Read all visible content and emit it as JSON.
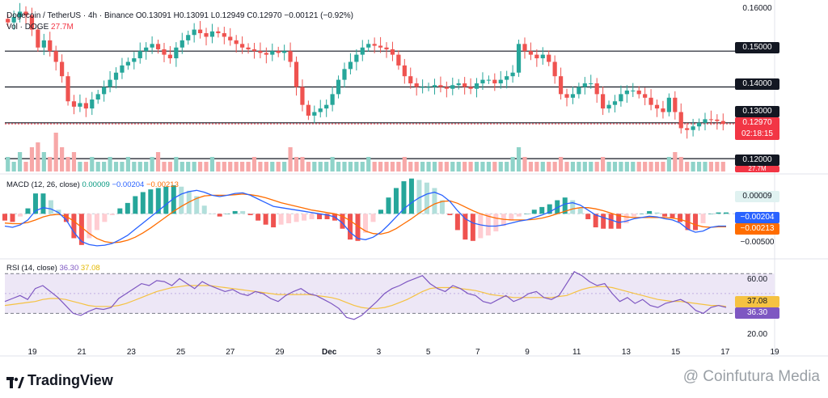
{
  "header": {
    "symbol": "Dogecoin / TetherUS · 4h · Binance",
    "ohlc": "O0.13091 H0.13091 L0.12949 C0.12970 −0.00121 (−0.92%)",
    "vol_label": "Vol · DOGE",
    "vol_value": "27.7M"
  },
  "price_axis": {
    "ticks": [
      "0.16000",
      "0.15000",
      "0.14000",
      "0.13000",
      "0.12000"
    ],
    "tick_values": [
      0.16,
      0.15,
      0.14,
      0.13,
      0.12
    ],
    "current_price": "0.12970",
    "countdown": "02:18:15",
    "vol_tag": "27.7M"
  },
  "macd": {
    "title": "MACD (12, 26, close)",
    "hist_label": "0.00009",
    "macd_label": "−0.00204",
    "signal_label": "−0.00213",
    "axis_ticks": [
      "−0.00500"
    ],
    "tags": {
      "hist": "0.00009",
      "macd": "−0.00204",
      "signal": "−0.00213"
    }
  },
  "rsi": {
    "title": "RSI (14, close)",
    "rsi_label": "36.30",
    "ma_label": "37.08",
    "axis_ticks": [
      "60.00",
      "20.00"
    ],
    "tags": {
      "ma": "37.08",
      "rsi": "36.30"
    }
  },
  "time_axis": [
    "19",
    "21",
    "23",
    "25",
    "27",
    "29",
    "Dec",
    "3",
    "5",
    "7",
    "9",
    "11",
    "13",
    "15",
    "17",
    "19"
  ],
  "branding": {
    "logo": "TradingView",
    "watermark": "@ Coinfutura Media"
  },
  "colors": {
    "up": "#26a69a",
    "down": "#ef5350",
    "macd": "#2962ff",
    "signal": "#ff6d00",
    "rsi": "#7e57c2",
    "rsi_ma": "#f5c242"
  },
  "chart_data": {
    "type": "candlestick",
    "title": "Dogecoin / TetherUS · 4h · Binance",
    "ylim": [
      0.118,
      0.162
    ],
    "horizontal_levels": [
      0.15,
      0.14,
      0.13,
      0.12
    ],
    "candles_close": [
      0.158,
      0.1595,
      0.161,
      0.16,
      0.156,
      0.151,
      0.153,
      0.15,
      0.147,
      0.143,
      0.136,
      0.1345,
      0.1355,
      0.134,
      0.1365,
      0.138,
      0.14,
      0.142,
      0.144,
      0.146,
      0.147,
      0.148,
      0.15,
      0.151,
      0.152,
      0.1505,
      0.149,
      0.148,
      0.151,
      0.153,
      0.1545,
      0.156,
      0.155,
      0.154,
      0.1555,
      0.155,
      0.154,
      0.153,
      0.152,
      0.151,
      0.1505,
      0.15,
      0.1495,
      0.149,
      0.15,
      0.1495,
      0.15,
      0.147,
      0.14,
      0.135,
      0.132,
      0.133,
      0.134,
      0.135,
      0.138,
      0.142,
      0.145,
      0.147,
      0.149,
      0.151,
      0.152,
      0.1515,
      0.151,
      0.1505,
      0.149,
      0.146,
      0.143,
      0.141,
      0.14,
      0.14,
      0.14,
      0.1405,
      0.14,
      0.1395,
      0.1405,
      0.141,
      0.14,
      0.1395,
      0.141,
      0.142,
      0.142,
      0.141,
      0.142,
      0.143,
      0.144,
      0.152,
      0.15,
      0.149,
      0.148,
      0.149,
      0.147,
      0.143,
      0.138,
      0.137,
      0.138,
      0.14,
      0.141,
      0.141,
      0.138,
      0.134,
      0.135,
      0.136,
      0.138,
      0.139,
      0.139,
      0.138,
      0.137,
      0.135,
      0.134,
      0.133,
      0.137,
      0.133,
      0.1285,
      0.128,
      0.129,
      0.13,
      0.131,
      0.1309,
      0.1305,
      0.1297
    ],
    "volume": [
      3,
      2,
      4,
      2,
      5,
      6,
      4,
      3,
      8,
      5,
      3,
      4,
      2,
      2,
      3,
      2,
      2,
      3,
      2,
      2,
      3,
      2,
      2,
      2,
      3,
      4,
      2,
      2,
      3,
      2,
      2,
      2,
      2,
      2,
      3,
      2,
      2,
      2,
      2,
      2,
      2,
      3,
      2,
      2,
      2,
      2,
      2,
      5,
      3,
      3,
      2,
      2,
      2,
      2,
      3,
      2,
      2,
      2,
      2,
      2,
      3,
      2,
      2,
      2,
      2,
      2,
      3,
      2,
      2,
      2,
      2,
      2,
      2,
      2,
      2,
      2,
      2,
      2,
      2,
      2,
      2,
      2,
      2,
      2,
      3,
      5,
      3,
      2,
      2,
      2,
      2,
      2,
      3,
      2,
      2,
      2,
      2,
      2,
      2,
      3,
      2,
      2,
      2,
      2,
      2,
      2,
      2,
      2,
      2,
      2,
      3,
      4,
      3,
      2,
      2,
      2,
      2,
      2,
      2,
      2
    ],
    "macd_line": [
      -0.002,
      -0.0022,
      -0.0018,
      -0.001,
      0.0005,
      0.001,
      0.0008,
      0.0002,
      -0.001,
      -0.003,
      -0.0045,
      -0.005,
      -0.0052,
      -0.0051,
      -0.0048,
      -0.0042,
      -0.0035,
      -0.0025,
      -0.0015,
      -0.0005,
      0.0005,
      0.0015,
      0.0025,
      0.0032,
      0.0036,
      0.0038,
      0.0035,
      0.003,
      0.0028,
      0.003,
      0.0033,
      0.0034,
      0.003,
      0.0024,
      0.0018,
      0.0012,
      0.001,
      0.0008,
      0.0006,
      0.0004,
      0.0002,
      0.0,
      -0.0002,
      -0.0005,
      -0.0015,
      -0.003,
      -0.004,
      -0.0042,
      -0.0038,
      -0.003,
      -0.0018,
      -0.0005,
      0.0008,
      0.0018,
      0.0026,
      0.0032,
      0.0035,
      0.003,
      0.002,
      0.0005,
      -0.0008,
      -0.0015,
      -0.0018,
      -0.002,
      -0.002,
      -0.0018,
      -0.0015,
      -0.0012,
      -0.001,
      -0.0006,
      -0.0002,
      0.0003,
      0.001,
      0.0016,
      0.0018,
      0.0014,
      0.0006,
      -0.0002,
      -0.0006,
      -0.001,
      -0.0014,
      -0.0012,
      -0.0008,
      -0.0006,
      -0.0004,
      -0.0005,
      -0.0008,
      -0.001,
      -0.0015,
      -0.0025,
      -0.003,
      -0.0028,
      -0.0022,
      -0.002,
      -0.002
    ],
    "signal_line": [
      -0.0015,
      -0.0016,
      -0.0016,
      -0.0014,
      -0.001,
      -0.0005,
      -0.0002,
      -0.0001,
      -0.0004,
      -0.0012,
      -0.0022,
      -0.0032,
      -0.004,
      -0.0045,
      -0.0047,
      -0.0046,
      -0.0043,
      -0.0038,
      -0.0031,
      -0.0023,
      -0.0014,
      -0.0005,
      0.0004,
      0.0012,
      0.0019,
      0.0025,
      0.0029,
      0.003,
      0.003,
      0.003,
      0.0031,
      0.0032,
      0.0031,
      0.0029,
      0.0026,
      0.0022,
      0.0018,
      0.0015,
      0.0012,
      0.0009,
      0.0006,
      0.0004,
      0.0002,
      0.0,
      -0.0004,
      -0.0011,
      -0.002,
      -0.0028,
      -0.0032,
      -0.0033,
      -0.003,
      -0.0024,
      -0.0016,
      -0.0008,
      0.0001,
      0.0009,
      0.0016,
      0.002,
      0.0021,
      0.0017,
      0.0011,
      0.0005,
      0.0,
      -0.0004,
      -0.0007,
      -0.0009,
      -0.001,
      -0.001,
      -0.001,
      -0.0009,
      -0.0007,
      -0.0004,
      0.0,
      0.0004,
      0.0008,
      0.001,
      0.001,
      0.0008,
      0.0005,
      0.0001,
      -0.0003,
      -0.0005,
      -0.0006,
      -0.0006,
      -0.0006,
      -0.0006,
      -0.0006,
      -0.0007,
      -0.0009,
      -0.0013,
      -0.0018,
      -0.0021,
      -0.0022,
      -0.0021,
      -0.0021
    ],
    "rsi_line": [
      42,
      45,
      48,
      44,
      55,
      58,
      52,
      46,
      38,
      30,
      28,
      32,
      35,
      34,
      36,
      45,
      50,
      55,
      60,
      58,
      63,
      62,
      58,
      65,
      60,
      55,
      62,
      58,
      55,
      52,
      54,
      50,
      48,
      52,
      50,
      45,
      42,
      48,
      52,
      55,
      50,
      48,
      44,
      40,
      35,
      26,
      24,
      28,
      35,
      42,
      50,
      55,
      58,
      62,
      65,
      68,
      60,
      55,
      52,
      58,
      55,
      50,
      48,
      42,
      40,
      44,
      48,
      42,
      45,
      50,
      52,
      46,
      44,
      48,
      60,
      72,
      68,
      62,
      58,
      60,
      50,
      42,
      46,
      40,
      44,
      38,
      36,
      40,
      42,
      44,
      40,
      33,
      30,
      36,
      38,
      36
    ],
    "rsi_ma": [
      38,
      39,
      40,
      41,
      42,
      44,
      45,
      45,
      44,
      42,
      40,
      38,
      37,
      37,
      37,
      38,
      40,
      43,
      46,
      49,
      52,
      54,
      56,
      57,
      58,
      58,
      58,
      58,
      57,
      56,
      55,
      54,
      53,
      52,
      51,
      50,
      49,
      49,
      49,
      49,
      49,
      48,
      47,
      46,
      44,
      41,
      38,
      36,
      35,
      35,
      36,
      38,
      41,
      44,
      48,
      52,
      55,
      56,
      56,
      56,
      55,
      54,
      53,
      51,
      49,
      48,
      47,
      46,
      46,
      46,
      46,
      46,
      46,
      47,
      48,
      51,
      54,
      56,
      57,
      57,
      56,
      54,
      52,
      50,
      48,
      46,
      44,
      43,
      42,
      42,
      41,
      40,
      39,
      38,
      38,
      37
    ],
    "rsi_bands": [
      70,
      30
    ]
  }
}
